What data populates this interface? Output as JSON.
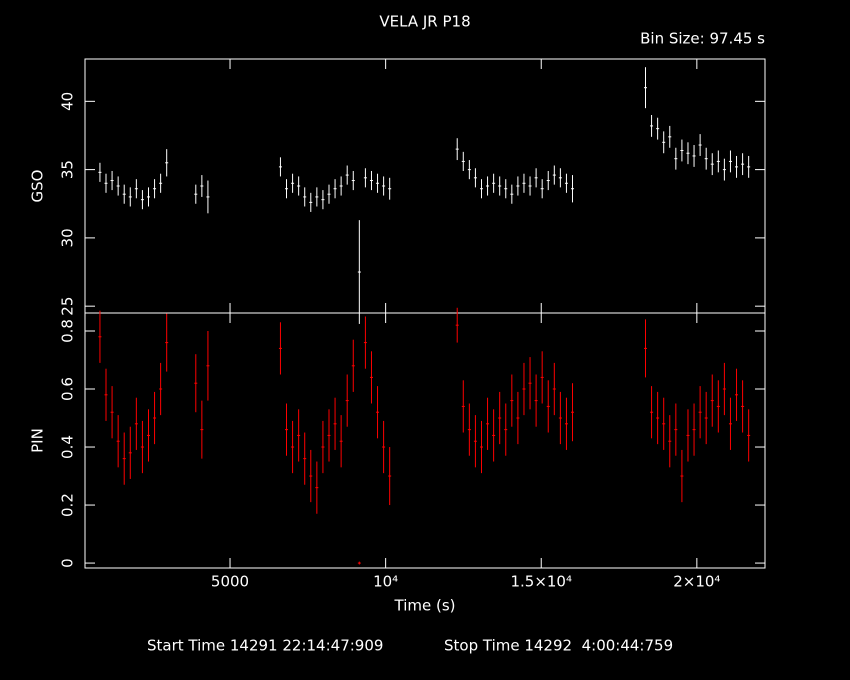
{
  "chart_data": {
    "type": "errorbar",
    "title": "VELA JR P18",
    "subtitle": "Bin Size: 97.45 s",
    "xlabel": "Time (s)",
    "x": [
      820,
      1015,
      1210,
      1405,
      1600,
      1795,
      1990,
      2185,
      2380,
      2575,
      2770,
      2965,
      3900,
      4095,
      4290,
      6620,
      6815,
      7010,
      7205,
      7400,
      7595,
      7790,
      7985,
      8180,
      8375,
      8570,
      8765,
      8960,
      9155,
      9350,
      9545,
      9740,
      9935,
      10130,
      12300,
      12495,
      12690,
      12885,
      13080,
      13275,
      13470,
      13665,
      13860,
      14055,
      14250,
      14445,
      14640,
      14835,
      15030,
      15225,
      15420,
      15615,
      15810,
      16005,
      18350,
      18545,
      18740,
      18935,
      19130,
      19325,
      19520,
      19715,
      19910,
      20105,
      20300,
      20495,
      20690,
      20885,
      21080,
      21275,
      21470,
      21665
    ],
    "xlim": [
      340,
      22190
    ],
    "xticks": [
      5000,
      {
        "value": 10000,
        "label": "10⁴"
      },
      {
        "value": 15000,
        "label": "1.5×10⁴"
      },
      {
        "value": 20000,
        "label": "2×10⁴"
      }
    ],
    "series": [
      {
        "name": "GSO",
        "color": "#ffffff",
        "ylim": [
          24.5,
          43.1
        ],
        "yticks": [
          25,
          30,
          35,
          40
        ],
        "values": [
          34.8,
          34.0,
          34.2,
          33.8,
          33.2,
          33.0,
          33.6,
          32.8,
          33.0,
          33.6,
          34.0,
          35.5,
          33.2,
          33.8,
          33.0,
          35.2,
          33.6,
          34.0,
          33.8,
          33.0,
          32.6,
          33.0,
          32.8,
          33.2,
          33.6,
          33.8,
          34.6,
          34.2,
          27.5,
          34.4,
          34.2,
          34.0,
          33.8,
          33.6,
          36.5,
          35.6,
          35.0,
          34.4,
          33.6,
          33.8,
          34.0,
          33.8,
          33.6,
          33.2,
          33.8,
          34.0,
          33.8,
          34.4,
          33.6,
          34.2,
          34.6,
          34.4,
          34.0,
          33.6,
          41.0,
          38.2,
          38.0,
          37.0,
          37.4,
          35.8,
          36.4,
          36.2,
          36.0,
          36.8,
          35.8,
          35.4,
          35.6,
          35.0,
          35.6,
          35.2,
          35.4,
          35.2
        ],
        "errors": [
          0.7,
          0.7,
          0.7,
          0.7,
          0.7,
          0.7,
          0.7,
          0.7,
          0.7,
          0.7,
          0.7,
          1.0,
          0.7,
          0.8,
          1.2,
          0.7,
          0.7,
          0.7,
          0.7,
          0.7,
          0.7,
          0.7,
          0.7,
          0.7,
          0.7,
          0.7,
          0.7,
          0.7,
          3.8,
          0.7,
          0.7,
          0.7,
          0.7,
          0.8,
          0.8,
          0.7,
          0.7,
          0.7,
          0.7,
          0.7,
          0.7,
          0.7,
          0.7,
          0.7,
          0.7,
          0.7,
          0.7,
          0.7,
          0.7,
          0.7,
          0.7,
          0.7,
          0.7,
          1.0,
          1.5,
          0.8,
          0.8,
          0.8,
          0.8,
          0.8,
          0.8,
          0.8,
          0.8,
          0.8,
          0.8,
          0.8,
          0.8,
          0.8,
          0.8,
          0.8,
          0.8,
          0.8
        ]
      },
      {
        "name": "PIN",
        "color": "#ff0000",
        "ylim": [
          -0.017,
          0.862
        ],
        "yticks": [
          0,
          0.2,
          0.4,
          0.6,
          0.8
        ],
        "values": [
          0.78,
          0.58,
          0.52,
          0.42,
          0.36,
          0.38,
          0.48,
          0.4,
          0.44,
          0.5,
          0.6,
          0.76,
          0.62,
          0.46,
          0.68,
          0.74,
          0.46,
          0.4,
          0.44,
          0.36,
          0.3,
          0.26,
          0.4,
          0.44,
          0.48,
          0.42,
          0.56,
          0.68,
          0.0,
          0.76,
          0.64,
          0.52,
          0.4,
          0.3,
          0.82,
          0.54,
          0.46,
          0.42,
          0.4,
          0.48,
          0.44,
          0.5,
          0.46,
          0.56,
          0.5,
          0.6,
          0.62,
          0.56,
          0.64,
          0.54,
          0.6,
          0.5,
          0.48,
          0.52,
          0.74,
          0.52,
          0.5,
          0.48,
          0.42,
          0.46,
          0.3,
          0.44,
          0.46,
          0.52,
          0.5,
          0.56,
          0.54,
          0.6,
          0.48,
          0.58,
          0.54,
          0.44
        ],
        "errors": [
          0.09,
          0.09,
          0.09,
          0.09,
          0.09,
          0.09,
          0.09,
          0.09,
          0.09,
          0.09,
          0.09,
          0.1,
          0.1,
          0.1,
          0.12,
          0.09,
          0.09,
          0.09,
          0.09,
          0.09,
          0.09,
          0.09,
          0.09,
          0.09,
          0.09,
          0.09,
          0.09,
          0.09,
          0.005,
          0.09,
          0.09,
          0.09,
          0.09,
          0.1,
          0.06,
          0.09,
          0.09,
          0.09,
          0.09,
          0.09,
          0.09,
          0.09,
          0.09,
          0.09,
          0.09,
          0.09,
          0.09,
          0.09,
          0.09,
          0.09,
          0.09,
          0.09,
          0.09,
          0.1,
          0.1,
          0.09,
          0.09,
          0.09,
          0.09,
          0.09,
          0.09,
          0.09,
          0.09,
          0.09,
          0.09,
          0.09,
          0.09,
          0.09,
          0.09,
          0.09,
          0.09,
          0.09
        ]
      }
    ],
    "footer": {
      "start": "Start Time 14291 22:14:47:909",
      "stop": "Stop Time 14292  4:00:44:759"
    }
  }
}
